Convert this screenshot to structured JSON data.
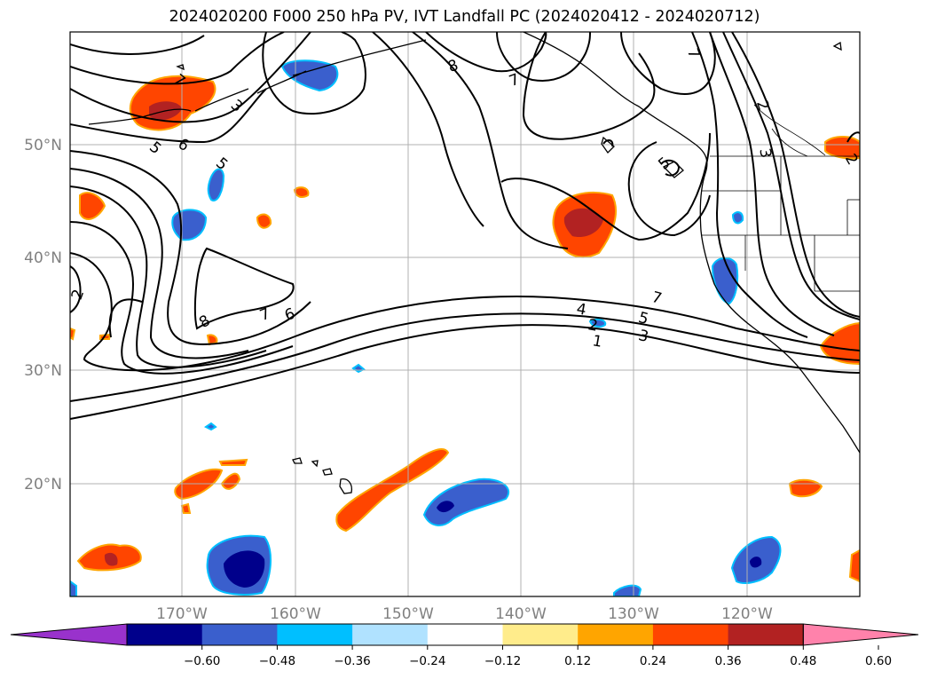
{
  "title": "2024020200 F000 250 hPa PV, IVT Landfall PC (2024020412 - 2024020712)",
  "latitude_labels": [
    "50°N",
    "40°N",
    "30°N",
    "20°N"
  ],
  "longitude_labels": [
    "170°W",
    "160°W",
    "150°W",
    "140°W",
    "130°W",
    "120°W"
  ],
  "pv_contour_labels": [
    "8",
    "7",
    "7",
    "3",
    "6",
    "5",
    "5",
    "2",
    "8",
    "7",
    "6",
    "4",
    "5",
    "3",
    "2",
    "1",
    "7",
    "2",
    "3",
    "2",
    "5",
    "7"
  ],
  "colorbar": {
    "tick_labels": [
      "−0.60",
      "−0.48",
      "−0.36",
      "−0.24",
      "−0.12",
      "0.12",
      "0.24",
      "0.36",
      "0.48",
      "0.60"
    ],
    "colors": [
      "#9932cc",
      "#00008b",
      "#3a5fcd",
      "#00bfff",
      "#b0e2ff",
      "#ffffff",
      "#ffec8b",
      "#ffa500",
      "#ff4500",
      "#b22222",
      "#ff82ab"
    ]
  },
  "map_colors": {
    "grid": "#b0b0b0",
    "coast": "#000000",
    "contour": "#000000"
  }
}
